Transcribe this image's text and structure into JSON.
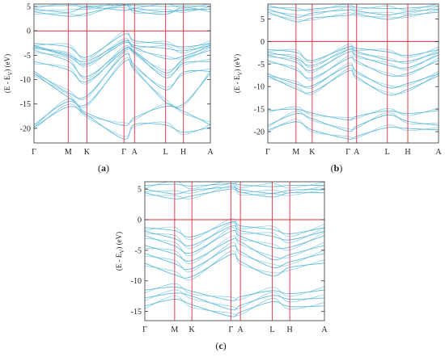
{
  "figure": {
    "colors": {
      "band": "#5bb8d8",
      "axis": "#333333",
      "redline": "#e8293d"
    }
  },
  "chart_data": [
    {
      "type": "line",
      "panel_label": "(a)",
      "ylabel_main": "(E - E",
      "ylabel_sub": "V",
      "ylabel_unit": ") (eV)",
      "ylim": [
        -23,
        5.5
      ],
      "yticks": [
        5,
        0,
        -5,
        -10,
        -15,
        -20
      ],
      "kpath": [
        {
          "label": "Γ",
          "pos": 0.0
        },
        {
          "label": "M",
          "pos": 0.194
        },
        {
          "label": "K",
          "pos": 0.3
        },
        {
          "label": "Γ",
          "pos": 0.51
        },
        {
          "label": "A",
          "pos": 0.57
        },
        {
          "label": "L",
          "pos": 0.746
        },
        {
          "label": "H",
          "pos": 0.847
        },
        {
          "label": "A",
          "pos": 1.0
        }
      ],
      "fermi_level": 0,
      "bands": [
        [
          5.0,
          5.2,
          5.1,
          5.3,
          5.2,
          5.0,
          5.1,
          5.0
        ],
        [
          4.5,
          3.8,
          4.9,
          4.2,
          4.6,
          3.9,
          4.2,
          4.5
        ],
        [
          3.9,
          3.0,
          3.6,
          5.2,
          4.1,
          3.4,
          4.8,
          3.9
        ],
        [
          -2.6,
          -3.3,
          -5.4,
          -0.7,
          -2.0,
          -2.7,
          -3.3,
          -2.6
        ],
        [
          -3.0,
          -5.0,
          -6.2,
          -2.2,
          -3.0,
          -3.6,
          -4.1,
          -3.0
        ],
        [
          -3.2,
          -5.3,
          -6.9,
          -2.5,
          -3.4,
          -5.7,
          -5.2,
          -3.2
        ],
        [
          -4.0,
          -6.2,
          -9.4,
          -3.8,
          -4.2,
          -8.6,
          -5.8,
          -4.0
        ],
        [
          -6.3,
          -8.0,
          -10.4,
          -4.2,
          -4.4,
          -9.6,
          -6.6,
          -6.3
        ],
        [
          -8.3,
          -12.7,
          -13.3,
          -5.0,
          -7.0,
          -12.1,
          -8.5,
          -8.3
        ],
        [
          -8.7,
          -13.6,
          -15.0,
          -6.4,
          -7.8,
          -14.6,
          -15.0,
          -8.7
        ],
        [
          -19.3,
          -14.5,
          -16.9,
          -19.4,
          -17.8,
          -15.5,
          -16.5,
          -19.3
        ],
        [
          -19.8,
          -15.6,
          -17.3,
          -22.2,
          -19.2,
          -19.3,
          -20.8,
          -19.8
        ]
      ]
    },
    {
      "type": "line",
      "panel_label": "(b)",
      "ylabel_main": "(E - E",
      "ylabel_sub": "V",
      "ylabel_unit": ") (eV)",
      "ylim": [
        -22.5,
        8.3
      ],
      "yticks": [
        5,
        0,
        -5,
        -10,
        -15,
        -20
      ],
      "kpath": [
        {
          "label": "Γ",
          "pos": 0.0
        },
        {
          "label": "M",
          "pos": 0.165
        },
        {
          "label": "K",
          "pos": 0.26
        },
        {
          "label": "Γ",
          "pos": 0.47
        },
        {
          "label": "A",
          "pos": 0.52
        },
        {
          "label": "L",
          "pos": 0.7
        },
        {
          "label": "H",
          "pos": 0.82
        },
        {
          "label": "A",
          "pos": 1.0
        }
      ],
      "fermi_level": 0,
      "bands": [
        [
          7.9,
          6.9,
          7.2,
          7.8,
          7.6,
          7.3,
          7.4,
          7.9
        ],
        [
          7.2,
          5.4,
          6.3,
          7.0,
          6.8,
          5.9,
          6.6,
          7.2
        ],
        [
          6.5,
          4.4,
          5.2,
          5.8,
          6.1,
          4.9,
          5.8,
          6.5
        ],
        [
          -1.8,
          -2.4,
          -4.2,
          -1.2,
          -1.5,
          -2.3,
          -3.1,
          -1.8
        ],
        [
          -2.4,
          -3.7,
          -5.3,
          -1.8,
          -2.2,
          -4.1,
          -4.4,
          -2.4
        ],
        [
          -3.0,
          -4.6,
          -6.4,
          -2.4,
          -3.1,
          -5.2,
          -5.8,
          -3.0
        ],
        [
          -4.2,
          -6.3,
          -8.1,
          -3.8,
          -4.3,
          -7.5,
          -7.1,
          -4.2
        ],
        [
          -7.2,
          -9.4,
          -9.8,
          -5.4,
          -6.6,
          -10.2,
          -9.3,
          -7.2
        ],
        [
          -7.6,
          -10.5,
          -11.2,
          -6.6,
          -7.8,
          -11.8,
          -10.6,
          -7.6
        ],
        [
          -15.3,
          -15.0,
          -15.9,
          -17.4,
          -16.6,
          -15.4,
          -16.0,
          -15.3
        ],
        [
          -18.6,
          -16.0,
          -17.1,
          -19.9,
          -18.8,
          -16.3,
          -17.7,
          -18.6
        ],
        [
          -19.6,
          -17.8,
          -19.6,
          -21.6,
          -21.0,
          -19.1,
          -19.3,
          -19.6
        ]
      ]
    },
    {
      "type": "line",
      "panel_label": "(c)",
      "ylabel_main": "(E - E",
      "ylabel_sub": "V",
      "ylabel_unit": ") (eV)",
      "ylim": [
        -16.5,
        6.2
      ],
      "yticks": [
        5,
        0,
        -5,
        -10,
        -15
      ],
      "kpath": [
        {
          "label": "Γ",
          "pos": 0.0
        },
        {
          "label": "M",
          "pos": 0.166
        },
        {
          "label": "K",
          "pos": 0.262
        },
        {
          "label": "Γ",
          "pos": 0.479
        },
        {
          "label": "A",
          "pos": 0.532
        },
        {
          "label": "L",
          "pos": 0.709
        },
        {
          "label": "H",
          "pos": 0.807
        },
        {
          "label": "A",
          "pos": 1.0
        }
      ],
      "fermi_level": 0,
      "bands": [
        [
          5.6,
          5.8,
          5.5,
          5.9,
          5.7,
          5.4,
          5.6,
          5.6
        ],
        [
          5.0,
          4.2,
          4.8,
          5.3,
          4.9,
          4.3,
          4.8,
          5.0
        ],
        [
          4.4,
          3.4,
          3.9,
          5.0,
          4.5,
          3.7,
          4.4,
          4.4
        ],
        [
          -1.3,
          -1.8,
          -2.8,
          -0.4,
          -1.0,
          -1.6,
          -2.3,
          -1.3
        ],
        [
          -1.9,
          -3.1,
          -4.2,
          -1.1,
          -1.8,
          -2.7,
          -3.3,
          -1.9
        ],
        [
          -2.6,
          -4.3,
          -5.4,
          -1.9,
          -2.7,
          -4.5,
          -4.5,
          -2.6
        ],
        [
          -4.2,
          -5.6,
          -6.7,
          -3.3,
          -3.6,
          -6.5,
          -5.7,
          -4.2
        ],
        [
          -5.5,
          -7.2,
          -8.0,
          -4.4,
          -5.2,
          -7.8,
          -6.9,
          -5.5
        ],
        [
          -7.1,
          -9.0,
          -9.3,
          -5.7,
          -6.8,
          -9.2,
          -7.8,
          -7.1
        ],
        [
          -11.5,
          -11.0,
          -11.7,
          -13.2,
          -12.6,
          -11.6,
          -12.1,
          -11.5
        ],
        [
          -12.8,
          -12.0,
          -12.5,
          -14.7,
          -14.0,
          -12.4,
          -13.0,
          -12.8
        ],
        [
          -14.1,
          -13.0,
          -13.9,
          -15.8,
          -15.1,
          -13.4,
          -14.2,
          -14.1
        ]
      ]
    }
  ]
}
